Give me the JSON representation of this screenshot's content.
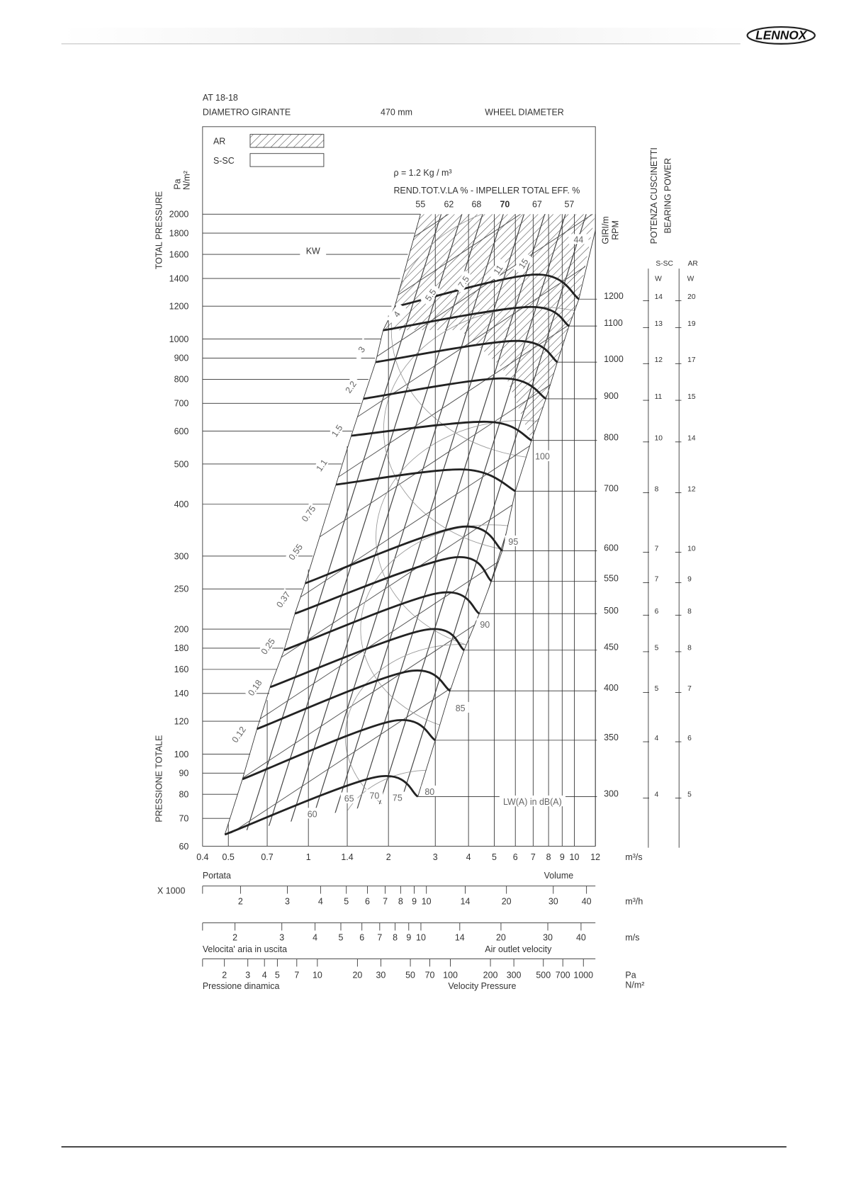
{
  "header": {
    "logo": "LENNOX"
  },
  "chart_data": {
    "type": "line",
    "title": "AT 18-18",
    "diameter_label_it": "DIAMETRO GIRANTE",
    "diameter_value": "470 mm",
    "diameter_label_en": "WHEEL DIAMETER",
    "legend": [
      {
        "name": "AR",
        "pattern": "hatch"
      },
      {
        "name": "S-SC",
        "pattern": "none"
      }
    ],
    "density": "ρ = 1.2 Kg / m³",
    "efficiency_title": "REND.TOT.V.LA % - IMPELLER TOTAL EFF. %",
    "efficiency_labels": [
      55,
      62,
      68,
      70,
      67,
      57
    ],
    "y_label_top": "TOTAL PRESSURE",
    "y_label_bottom": "PRESSIONE TOTALE",
    "y_unit": "Pa",
    "y_unit2": "N/m²",
    "rpm_label_it": "GIRI/m",
    "rpm_label_en": "RPM",
    "bearing_title_it": "POTENZA CUSCINETTI",
    "bearing_title_en": "BEARING POWER",
    "bearing_columns": [
      "S-SC",
      "AR"
    ],
    "bearing_units": [
      "W",
      "W"
    ],
    "xscale": "log",
    "yscale": "log",
    "xlim": [
      0.4,
      12
    ],
    "xticks": [
      0.4,
      0.5,
      0.7,
      1,
      1.4,
      2,
      3,
      4,
      5,
      6,
      7,
      8,
      9,
      10,
      12
    ],
    "x_unit": "m³/s",
    "ylim": [
      60,
      2000
    ],
    "yticks": [
      60,
      70,
      80,
      90,
      100,
      120,
      140,
      160,
      180,
      200,
      250,
      300,
      400,
      500,
      600,
      700,
      800,
      900,
      1000,
      1200,
      1400,
      1600,
      1800,
      2000
    ],
    "series": [
      {
        "name": "300",
        "color": "#222222",
        "x": [
          0.485,
          1.79,
          2.58
        ],
        "values": [
          64,
          88,
          79
        ]
      },
      {
        "name": "350",
        "color": "#222222",
        "x": [
          0.565,
          2.05,
          3.0
        ],
        "values": [
          87,
          120,
          108
        ]
      },
      {
        "name": "400",
        "color": "#222222",
        "x": [
          0.641,
          2.34,
          3.41
        ],
        "values": [
          115,
          158,
          142
        ]
      },
      {
        "name": "450",
        "color": "#222222",
        "x": [
          0.718,
          2.72,
          3.85
        ],
        "values": [
          145,
          199,
          178
        ]
      },
      {
        "name": "500",
        "color": "#222222",
        "x": [
          0.81,
          3.05,
          4.39
        ],
        "values": [
          178,
          244,
          218
        ]
      },
      {
        "name": "550",
        "color": "#222222",
        "x": [
          0.89,
          3.43,
          4.88
        ],
        "values": [
          218,
          297,
          261
        ]
      },
      {
        "name": "600",
        "color": "#222222",
        "x": [
          0.973,
          3.65,
          5.36
        ],
        "values": [
          258,
          352,
          309
        ]
      },
      {
        "name": "700",
        "color": "#222222",
        "x": [
          1.27,
          3.84,
          6.0
        ],
        "values": [
          446,
          485,
          430
        ]
      },
      {
        "name": "800",
        "color": "#222222",
        "x": [
          1.45,
          4.69,
          6.9
        ],
        "values": [
          585,
          632,
          570
        ]
      },
      {
        "name": "900",
        "color": "#222222",
        "x": [
          1.61,
          5.36,
          7.82
        ],
        "values": [
          718,
          804,
          718
        ]
      },
      {
        "name": "1000",
        "color": "#222222",
        "x": [
          1.79,
          6.09,
          8.63
        ],
        "values": [
          880,
          990,
          880
        ]
      },
      {
        "name": "1100",
        "color": "#222222",
        "x": [
          1.91,
          6.76,
          9.55
        ],
        "values": [
          1050,
          1195,
          1075
        ]
      },
      {
        "name": "1200",
        "color": "#222222",
        "x": [
          2.11,
          7.08,
          10.4
        ],
        "values": [
          1195,
          1430,
          1248
        ]
      }
    ],
    "bearing_power": {
      "ssc": [
        4,
        4,
        5,
        5,
        6,
        7,
        7,
        8,
        10,
        11,
        12,
        13,
        14
      ],
      "ar": [
        5,
        6,
        7,
        8,
        8,
        9,
        10,
        12,
        14,
        15,
        17,
        19,
        20
      ]
    },
    "kw_title": "KW",
    "kw_labels": [
      44,
      15,
      11,
      7.5,
      5.5,
      4,
      3,
      2.2,
      1.5,
      1.1,
      0.75,
      0.55,
      0.37,
      0.25,
      0.18,
      0.12
    ],
    "db_title": "LW(A) in dB(A)",
    "db_labels": [
      60,
      65,
      70,
      75,
      80,
      85,
      90,
      95,
      100
    ],
    "volume_label_it": "Portata",
    "volume_label_en": "Volume",
    "scales": [
      {
        "unit": "m³/h",
        "multiplier": "X 1000",
        "xlim": [
          1.44,
          43.2
        ],
        "xticks": [
          2,
          3,
          4,
          5,
          6,
          7,
          8,
          9,
          10,
          14,
          20,
          30,
          40
        ]
      },
      {
        "unit": "m/s",
        "label_it": "Velocita' aria in uscita",
        "label_en": "Air outlet velocity",
        "xlim": [
          1.51,
          45.3
        ],
        "xticks": [
          2,
          3,
          4,
          5,
          6,
          7,
          8,
          9,
          10,
          14,
          20,
          30,
          40
        ]
      },
      {
        "unit": "Pa",
        "unit2": "N/m²",
        "label_it": "Pressione dinamica",
        "label_en": "Velocity Pressure",
        "xlim": [
          1.37,
          1231
        ],
        "xticks": [
          2,
          3,
          4,
          5,
          7,
          10,
          20,
          30,
          50,
          70,
          100,
          200,
          300,
          500,
          700,
          1000
        ]
      }
    ]
  }
}
